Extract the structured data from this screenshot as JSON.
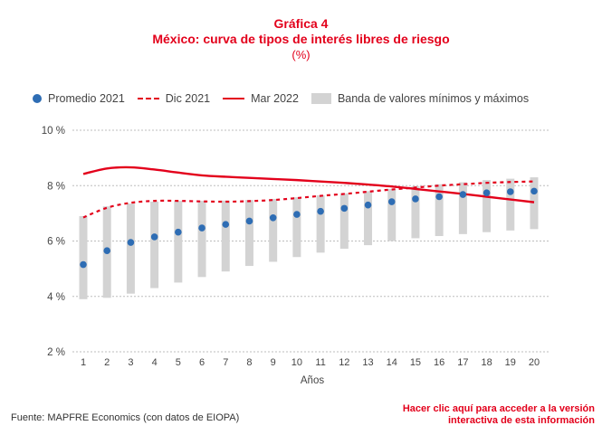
{
  "header": {
    "line1": "Gráfica 4",
    "line2": "México: curva de tipos de interés libres de riesgo",
    "line3": "(%)"
  },
  "legend": {
    "dots": "Promedio 2021",
    "dashed": "Dic 2021",
    "solid": "Mar 2022",
    "band": "Banda de valores mínimos y máximos"
  },
  "footer": {
    "source": "Fuente: MAPFRE Economics (con datos de EIOPA)",
    "cta_line1": "Hacer clic aquí para acceder a la versión",
    "cta_line2": "interactiva de esta información"
  },
  "colors": {
    "red": "#e3001b",
    "blue": "#2e6db4",
    "band": "#d3d3d3"
  },
  "chart_data": {
    "type": "line",
    "xlabel": "Años",
    "ylabel": "",
    "x": [
      1,
      2,
      3,
      4,
      5,
      6,
      7,
      8,
      9,
      10,
      11,
      12,
      13,
      14,
      15,
      16,
      17,
      18,
      19,
      20
    ],
    "ylim": [
      2,
      10
    ],
    "yticks": [
      2,
      4,
      6,
      8,
      10
    ],
    "ytick_labels": [
      "2 %",
      "4 %",
      "6 %",
      "8 %",
      "10 %"
    ],
    "grid": "horizontal",
    "legend_position": "top",
    "series": [
      {
        "name": "Promedio 2021",
        "kind": "points",
        "values": [
          5.15,
          5.65,
          5.95,
          6.15,
          6.32,
          6.47,
          6.6,
          6.72,
          6.84,
          6.96,
          7.07,
          7.18,
          7.3,
          7.42,
          7.52,
          7.6,
          7.68,
          7.74,
          7.78,
          7.8
        ]
      },
      {
        "name": "Dic 2021",
        "kind": "dashed",
        "values": [
          6.85,
          7.2,
          7.38,
          7.45,
          7.45,
          7.43,
          7.42,
          7.44,
          7.48,
          7.55,
          7.63,
          7.7,
          7.78,
          7.86,
          7.93,
          8.0,
          8.05,
          8.1,
          8.13,
          8.15
        ]
      },
      {
        "name": "Mar 2022",
        "kind": "solid",
        "values": [
          8.42,
          8.62,
          8.66,
          8.58,
          8.47,
          8.37,
          8.32,
          8.28,
          8.24,
          8.2,
          8.15,
          8.1,
          8.04,
          7.97,
          7.88,
          7.79,
          7.7,
          7.6,
          7.5,
          7.4
        ]
      },
      {
        "name": "Banda de valores mínimos y máximos",
        "kind": "band",
        "min": [
          3.9,
          3.95,
          4.1,
          4.3,
          4.5,
          4.7,
          4.9,
          5.1,
          5.25,
          5.42,
          5.58,
          5.72,
          5.85,
          6.0,
          6.1,
          6.18,
          6.25,
          6.32,
          6.38,
          6.43
        ],
        "max": [
          6.9,
          7.25,
          7.35,
          7.42,
          7.45,
          7.45,
          7.46,
          7.48,
          7.52,
          7.58,
          7.65,
          7.72,
          7.8,
          7.88,
          7.98,
          8.05,
          8.12,
          8.2,
          8.25,
          8.3
        ]
      }
    ]
  }
}
